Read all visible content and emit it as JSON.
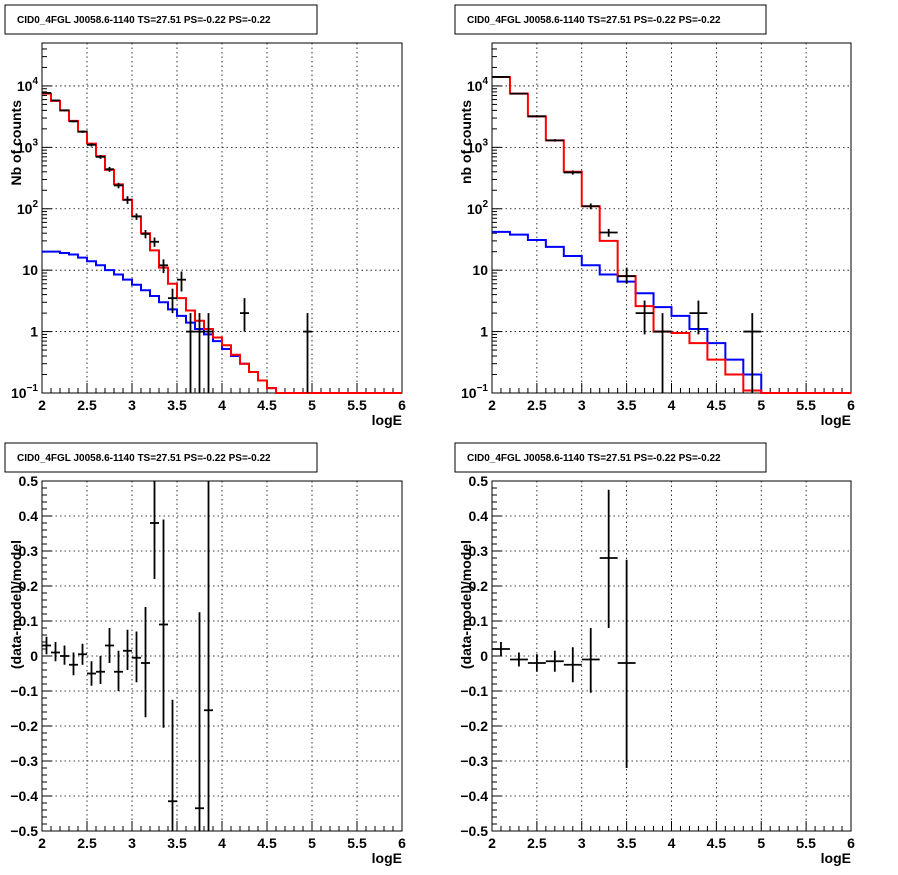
{
  "colors": {
    "data": "#000000",
    "model_total": "#ff0000",
    "model_component": "#0000ff",
    "grid": "#000000",
    "frame": "#000000"
  },
  "chart_data": [
    {
      "type": "line",
      "title": "CID0_4FGL J0058.6-1140 TS=27.51 PS=-0.22 PS=-0.22",
      "xlabel": "logE",
      "ylabel": "Nb of counts",
      "xlim": [
        2,
        6
      ],
      "ylim": [
        0.1,
        50000
      ],
      "yscale": "log",
      "grid": true,
      "x_ticks": [
        "2",
        "2.5",
        "3",
        "3.5",
        "4",
        "4.5",
        "5",
        "5.5",
        "6"
      ],
      "y_ticks": [
        {
          "value": 0.1,
          "mant": "10",
          "exp": "−1"
        },
        {
          "value": 1,
          "mant": "1",
          "exp": ""
        },
        {
          "value": 10,
          "mant": "10",
          "exp": ""
        },
        {
          "value": 100,
          "mant": "10",
          "exp": "2"
        },
        {
          "value": 1000,
          "mant": "10",
          "exp": "3"
        },
        {
          "value": 10000,
          "mant": "10",
          "exp": "4"
        }
      ],
      "bin_edges": [
        2.0,
        2.1,
        2.2,
        2.3,
        2.4,
        2.5,
        2.6,
        2.7,
        2.8,
        2.9,
        3.0,
        3.1,
        3.2,
        3.3,
        3.4,
        3.5,
        3.6,
        3.7,
        3.8,
        3.9,
        4.0,
        4.1,
        4.2,
        4.3,
        4.4,
        4.5,
        4.6,
        4.7,
        4.8,
        4.9,
        5.0,
        5.1,
        5.2,
        5.3,
        5.4,
        5.5,
        5.6,
        5.7,
        5.8,
        5.9,
        6.0
      ],
      "series": [
        {
          "role": "model_total",
          "values": [
            7500,
            5700,
            4000,
            2700,
            1800,
            1150,
            720,
            430,
            250,
            140,
            75,
            40,
            21,
            11,
            6,
            3.5,
            2.2,
            1.5,
            1.1,
            0.8,
            0.6,
            0.42,
            0.3,
            0.22,
            0.16,
            0.12,
            0.1,
            0.1,
            0.1,
            0.1,
            0.1,
            0.1,
            0.1,
            0.1,
            0.1,
            0.1,
            0.1,
            0.1,
            0.1,
            0.1
          ]
        },
        {
          "role": "model_component",
          "values": [
            20,
            20,
            19,
            18,
            16,
            14,
            12,
            10,
            8.5,
            7,
            5.8,
            4.7,
            3.8,
            3.0,
            2.3,
            1.8,
            1.4,
            1.1,
            0.9,
            0.7,
            0.52,
            0.4,
            0.3,
            0.22,
            0.16,
            0.12,
            0.1,
            0.1,
            0.1,
            0.1,
            0.1,
            0.1,
            0.1,
            0.1,
            0.1,
            0.1,
            0.1,
            0.1,
            0.1,
            0.1
          ]
        }
      ],
      "points": [
        {
          "x": 2.05,
          "y": 7700,
          "ylo": 7500,
          "yhi": 7900
        },
        {
          "x": 2.15,
          "y": 5800,
          "ylo": 5650,
          "yhi": 5950
        },
        {
          "x": 2.25,
          "y": 4000,
          "ylo": 3870,
          "yhi": 4130
        },
        {
          "x": 2.35,
          "y": 2650,
          "ylo": 2550,
          "yhi": 2750
        },
        {
          "x": 2.45,
          "y": 1800,
          "ylo": 1720,
          "yhi": 1880
        },
        {
          "x": 2.55,
          "y": 1100,
          "ylo": 1030,
          "yhi": 1170
        },
        {
          "x": 2.65,
          "y": 700,
          "ylo": 650,
          "yhi": 750
        },
        {
          "x": 2.75,
          "y": 440,
          "ylo": 400,
          "yhi": 480
        },
        {
          "x": 2.85,
          "y": 240,
          "ylo": 215,
          "yhi": 265
        },
        {
          "x": 2.95,
          "y": 140,
          "ylo": 120,
          "yhi": 160
        },
        {
          "x": 3.05,
          "y": 75,
          "ylo": 66,
          "yhi": 84
        },
        {
          "x": 3.15,
          "y": 39,
          "ylo": 33,
          "yhi": 45
        },
        {
          "x": 3.25,
          "y": 29,
          "ylo": 24,
          "yhi": 34
        },
        {
          "x": 3.35,
          "y": 12,
          "ylo": 9,
          "yhi": 15
        },
        {
          "x": 3.45,
          "y": 3.5,
          "ylo": 2,
          "yhi": 5
        },
        {
          "x": 3.55,
          "y": 7,
          "ylo": 4.5,
          "yhi": 9.5
        },
        {
          "x": 3.65,
          "y": 1,
          "ylo": 0.1,
          "yhi": 2
        },
        {
          "x": 3.75,
          "y": 1,
          "ylo": 0.1,
          "yhi": 2
        },
        {
          "x": 3.85,
          "y": 1,
          "ylo": 0.1,
          "yhi": 2
        },
        {
          "x": 4.25,
          "y": 2,
          "ylo": 1,
          "yhi": 3.5
        },
        {
          "x": 4.95,
          "y": 1,
          "ylo": 0.1,
          "yhi": 2
        }
      ]
    },
    {
      "type": "line",
      "title": "CID0_4FGL J0058.6-1140 TS=27.51 PS=-0.22 PS=-0.22",
      "xlabel": "logE",
      "ylabel": "nb of counts",
      "xlim": [
        2,
        6
      ],
      "ylim": [
        0.1,
        50000
      ],
      "yscale": "log",
      "grid": true,
      "x_ticks": [
        "2",
        "2.5",
        "3",
        "3.5",
        "4",
        "4.5",
        "5",
        "5.5",
        "6"
      ],
      "y_ticks": [
        {
          "value": 0.1,
          "mant": "10",
          "exp": "−1"
        },
        {
          "value": 1,
          "mant": "1",
          "exp": ""
        },
        {
          "value": 10,
          "mant": "10",
          "exp": ""
        },
        {
          "value": 100,
          "mant": "10",
          "exp": "2"
        },
        {
          "value": 1000,
          "mant": "10",
          "exp": "3"
        },
        {
          "value": 10000,
          "mant": "10",
          "exp": "4"
        }
      ],
      "bin_edges": [
        2.0,
        2.2,
        2.4,
        2.6,
        2.8,
        3.0,
        3.2,
        3.4,
        3.6,
        3.8,
        4.0,
        4.2,
        4.4,
        4.6,
        4.8,
        5.0,
        5.2,
        5.4,
        5.6,
        5.8,
        6.0
      ],
      "series": [
        {
          "role": "model_total",
          "values": [
            14000,
            7500,
            3200,
            1300,
            400,
            110,
            30,
            8,
            2.6,
            1,
            0.95,
            0.65,
            0.35,
            0.2,
            0.11,
            0.1,
            0.1,
            0.1,
            0.1,
            0.1
          ]
        },
        {
          "role": "model_component",
          "values": [
            42,
            38,
            31,
            24,
            17,
            12,
            8.5,
            6.5,
            4.2,
            2.5,
            1.8,
            1.1,
            0.65,
            0.35,
            0.2,
            0.1,
            0.1,
            0.1,
            0.1,
            0.1
          ]
        }
      ],
      "points": [
        {
          "x": 2.1,
          "y": 14000,
          "ylo": 13700,
          "yhi": 14300
        },
        {
          "x": 2.3,
          "y": 7500,
          "ylo": 7300,
          "yhi": 7700
        },
        {
          "x": 2.5,
          "y": 3200,
          "ylo": 3080,
          "yhi": 3320
        },
        {
          "x": 2.7,
          "y": 1300,
          "ylo": 1240,
          "yhi": 1360
        },
        {
          "x": 2.9,
          "y": 390,
          "ylo": 360,
          "yhi": 420
        },
        {
          "x": 3.1,
          "y": 110,
          "ylo": 98,
          "yhi": 122
        },
        {
          "x": 3.3,
          "y": 41,
          "ylo": 35,
          "yhi": 47
        },
        {
          "x": 3.5,
          "y": 8,
          "ylo": 6,
          "yhi": 11
        },
        {
          "x": 3.7,
          "y": 2,
          "ylo": 0.9,
          "yhi": 3.2
        },
        {
          "x": 3.9,
          "y": 1,
          "ylo": 0.1,
          "yhi": 2
        },
        {
          "x": 4.3,
          "y": 2,
          "ylo": 0.9,
          "yhi": 3.2
        },
        {
          "x": 4.9,
          "y": 1,
          "ylo": 0.1,
          "yhi": 2
        }
      ]
    },
    {
      "type": "scatter",
      "title": "CID0_4FGL J0058.6-1140 TS=27.51 PS=-0.22 PS=-0.22",
      "xlabel": "logE",
      "ylabel": "(data-model)/model",
      "xlim": [
        2,
        6
      ],
      "ylim": [
        -0.5,
        0.5
      ],
      "grid": true,
      "x_ticks": [
        "2",
        "2.5",
        "3",
        "3.5",
        "4",
        "4.5",
        "5",
        "5.5",
        "6"
      ],
      "y_ticks": [
        "−0.5",
        "−0.4",
        "−0.3",
        "−0.2",
        "−0.1",
        "0",
        "0.1",
        "0.2",
        "0.3",
        "0.4",
        "0.5"
      ],
      "points": [
        {
          "x": 2.05,
          "y": 0.03,
          "ylo": 0.005,
          "yhi": 0.055
        },
        {
          "x": 2.15,
          "y": 0.01,
          "ylo": -0.015,
          "yhi": 0.04
        },
        {
          "x": 2.25,
          "y": 0.0,
          "ylo": -0.025,
          "yhi": 0.03
        },
        {
          "x": 2.35,
          "y": -0.025,
          "ylo": -0.055,
          "yhi": 0.01
        },
        {
          "x": 2.45,
          "y": 0.005,
          "ylo": -0.025,
          "yhi": 0.035
        },
        {
          "x": 2.55,
          "y": -0.05,
          "ylo": -0.085,
          "yhi": -0.015
        },
        {
          "x": 2.65,
          "y": -0.045,
          "ylo": -0.08,
          "yhi": 0.0
        },
        {
          "x": 2.75,
          "y": 0.03,
          "ylo": -0.02,
          "yhi": 0.08
        },
        {
          "x": 2.85,
          "y": -0.045,
          "ylo": -0.1,
          "yhi": 0.015
        },
        {
          "x": 2.95,
          "y": 0.015,
          "ylo": -0.04,
          "yhi": 0.075
        },
        {
          "x": 3.05,
          "y": -0.005,
          "ylo": -0.075,
          "yhi": 0.07
        },
        {
          "x": 3.15,
          "y": -0.02,
          "ylo": -0.175,
          "yhi": 0.14
        },
        {
          "x": 3.25,
          "y": 0.38,
          "ylo": 0.22,
          "yhi": 0.5
        },
        {
          "x": 3.35,
          "y": 0.09,
          "ylo": -0.205,
          "yhi": 0.39
        },
        {
          "x": 3.45,
          "y": -0.415,
          "ylo": -0.5,
          "yhi": -0.125
        },
        {
          "x": 3.75,
          "y": -0.435,
          "ylo": -0.5,
          "yhi": 0.125
        },
        {
          "x": 3.85,
          "y": -0.155,
          "ylo": -0.5,
          "yhi": 0.5
        }
      ]
    },
    {
      "type": "scatter",
      "title": "CID0_4FGL J0058.6-1140 TS=27.51 PS=-0.22 PS=-0.22",
      "xlabel": "logE",
      "ylabel": "(data-model)/model",
      "xlim": [
        2,
        6
      ],
      "ylim": [
        -0.5,
        0.5
      ],
      "grid": true,
      "x_ticks": [
        "2",
        "2.5",
        "3",
        "3.5",
        "4",
        "4.5",
        "5",
        "5.5",
        "6"
      ],
      "y_ticks": [
        "−0.5",
        "−0.4",
        "−0.3",
        "−0.2",
        "−0.1",
        "0",
        "0.1",
        "0.2",
        "0.3",
        "0.4",
        "0.5"
      ],
      "points": [
        {
          "x": 2.1,
          "y": 0.02,
          "ylo": 0.0,
          "yhi": 0.04
        },
        {
          "x": 2.3,
          "y": -0.01,
          "ylo": -0.03,
          "yhi": 0.01
        },
        {
          "x": 2.5,
          "y": -0.02,
          "ylo": -0.045,
          "yhi": 0.005
        },
        {
          "x": 2.7,
          "y": -0.015,
          "ylo": -0.045,
          "yhi": 0.015
        },
        {
          "x": 2.9,
          "y": -0.025,
          "ylo": -0.075,
          "yhi": 0.025
        },
        {
          "x": 3.1,
          "y": -0.01,
          "ylo": -0.105,
          "yhi": 0.08
        },
        {
          "x": 3.3,
          "y": 0.28,
          "ylo": 0.08,
          "yhi": 0.475
        },
        {
          "x": 3.5,
          "y": -0.02,
          "ylo": -0.32,
          "yhi": 0.275
        }
      ]
    }
  ]
}
